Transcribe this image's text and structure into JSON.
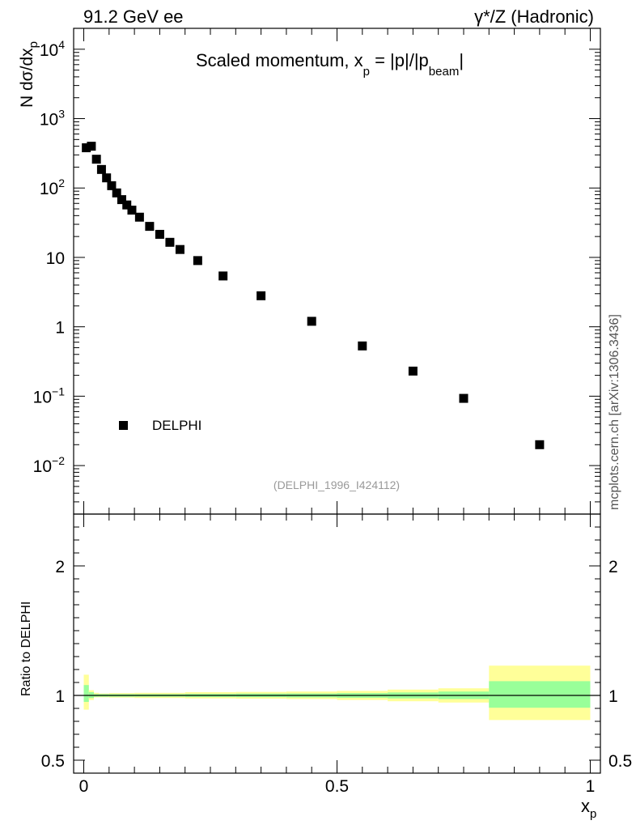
{
  "header": {
    "left": "91.2 GeV ee",
    "right": "γ*/Z (Hadronic)"
  },
  "side_label": "mcplots.cern.ch [arXiv:1306.3436]",
  "chart_data": [
    {
      "type": "scatter",
      "panel": "main",
      "title": "Scaled momentum, x_p = |p|/|p_beam|",
      "title_parts": {
        "a": "Scaled momentum, x",
        "sub1": "p",
        "b": " = |p|/|p",
        "sub2": "beam",
        "c": "|"
      },
      "ylabel": "N  dσ/dx",
      "ylabel_sub": "p",
      "yscale": "log",
      "ylim": [
        0.002,
        20000
      ],
      "xlim": [
        -0.02,
        1.02
      ],
      "y_ticks": [
        {
          "value": 0.01,
          "base": "10",
          "exp": "−2"
        },
        {
          "value": 0.1,
          "base": "10",
          "exp": "−1"
        },
        {
          "value": 1,
          "base": "1",
          "exp": ""
        },
        {
          "value": 10,
          "base": "10",
          "exp": ""
        },
        {
          "value": 100,
          "base": "10",
          "exp": "2"
        },
        {
          "value": 1000,
          "base": "10",
          "exp": "3"
        },
        {
          "value": 10000,
          "base": "10",
          "exp": "4"
        }
      ],
      "legend": {
        "label": "DELPHI",
        "position": "bottom-left"
      },
      "watermark": "(DELPHI_1996_I424112)",
      "series": [
        {
          "name": "DELPHI",
          "x": [
            0.005,
            0.015,
            0.025,
            0.035,
            0.045,
            0.055,
            0.065,
            0.075,
            0.085,
            0.095,
            0.11,
            0.13,
            0.15,
            0.17,
            0.19,
            0.225,
            0.275,
            0.35,
            0.45,
            0.55,
            0.65,
            0.75,
            0.9
          ],
          "y": [
            380,
            400,
            260,
            185,
            140,
            108,
            85,
            68,
            57,
            48,
            38,
            28,
            21.5,
            16.5,
            13,
            9.0,
            5.4,
            2.8,
            1.2,
            0.53,
            0.23,
            0.093,
            0.02
          ]
        }
      ]
    },
    {
      "type": "area",
      "panel": "ratio",
      "ylabel": "Ratio to DELPHI",
      "xlabel": "x",
      "xlabel_sub": "p",
      "ylim": [
        0.4,
        2.4
      ],
      "xlim": [
        -0.02,
        1.02
      ],
      "y_ticks": [
        {
          "value": 0.5,
          "label": "0.5"
        },
        {
          "value": 1,
          "label": "1"
        },
        {
          "value": 2,
          "label": "2"
        }
      ],
      "x_ticks": [
        {
          "value": 0,
          "label": "0"
        },
        {
          "value": 0.5,
          "label": "0.5"
        },
        {
          "value": 1,
          "label": "1"
        }
      ],
      "reference_line": 1,
      "band_colors": {
        "outer": "#ffff99",
        "inner": "#99ff99"
      },
      "bands": [
        {
          "x0": 0.0,
          "x1": 0.01,
          "outer": [
            0.89,
            1.16
          ],
          "inner": [
            0.95,
            1.08
          ]
        },
        {
          "x0": 0.01,
          "x1": 0.02,
          "outer": [
            0.965,
            1.04
          ],
          "inner": [
            0.98,
            1.025
          ]
        },
        {
          "x0": 0.02,
          "x1": 0.03,
          "outer": [
            0.985,
            1.02
          ],
          "inner": [
            0.99,
            1.01
          ]
        },
        {
          "x0": 0.03,
          "x1": 0.05,
          "outer": [
            0.985,
            1.015
          ],
          "inner": [
            0.99,
            1.01
          ]
        },
        {
          "x0": 0.05,
          "x1": 0.1,
          "outer": [
            0.983,
            1.018
          ],
          "inner": [
            0.99,
            1.01
          ]
        },
        {
          "x0": 0.1,
          "x1": 0.2,
          "outer": [
            0.98,
            1.02
          ],
          "inner": [
            0.99,
            1.01
          ]
        },
        {
          "x0": 0.2,
          "x1": 0.3,
          "outer": [
            0.977,
            1.025
          ],
          "inner": [
            0.988,
            1.012
          ]
        },
        {
          "x0": 0.3,
          "x1": 0.4,
          "outer": [
            0.975,
            1.027
          ],
          "inner": [
            0.987,
            1.014
          ]
        },
        {
          "x0": 0.4,
          "x1": 0.5,
          "outer": [
            0.972,
            1.03
          ],
          "inner": [
            0.985,
            1.015
          ]
        },
        {
          "x0": 0.5,
          "x1": 0.6,
          "outer": [
            0.965,
            1.035
          ],
          "inner": [
            0.982,
            1.018
          ]
        },
        {
          "x0": 0.6,
          "x1": 0.7,
          "outer": [
            0.955,
            1.045
          ],
          "inner": [
            0.977,
            1.023
          ]
        },
        {
          "x0": 0.7,
          "x1": 0.8,
          "outer": [
            0.945,
            1.055
          ],
          "inner": [
            0.972,
            1.03
          ]
        },
        {
          "x0": 0.8,
          "x1": 1.0,
          "outer": [
            0.81,
            1.23
          ],
          "inner": [
            0.905,
            1.11
          ]
        }
      ]
    }
  ]
}
